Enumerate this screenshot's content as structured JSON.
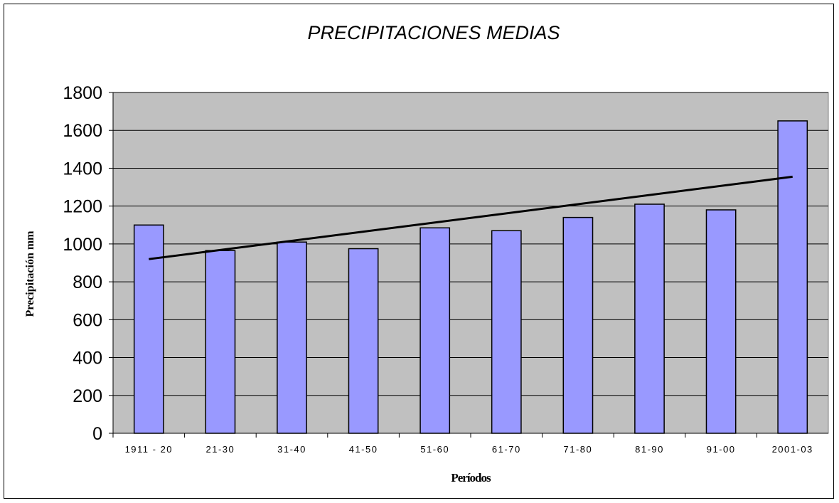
{
  "chart_data": {
    "type": "bar",
    "title": "PRECIPITACIONES MEDIAS",
    "xlabel": "Períodos",
    "ylabel": "Precipitación mm",
    "categories": [
      "1911 - 20",
      "21-30",
      "31-40",
      "41-50",
      "51-60",
      "61-70",
      "71-80",
      "81-90",
      "91-00",
      "2001-03"
    ],
    "values": [
      1100,
      965,
      1010,
      975,
      1085,
      1070,
      1140,
      1210,
      1180,
      1650
    ],
    "ylim": [
      0,
      1800
    ],
    "yticks": [
      0,
      200,
      400,
      600,
      800,
      1000,
      1200,
      1400,
      1600,
      1800
    ],
    "trendline": {
      "start": 920,
      "end": 1355
    },
    "grid": true,
    "legend": "none",
    "colors": {
      "bar": "#9999ff",
      "plot_bg": "#c0c0c0",
      "trend": "#000000"
    }
  }
}
